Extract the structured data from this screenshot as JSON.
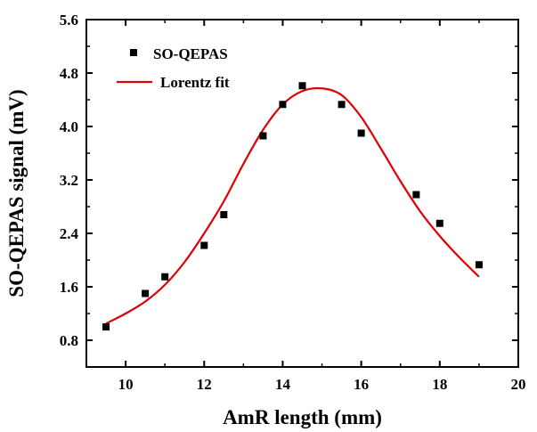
{
  "chart_data": {
    "type": "scatter",
    "xlabel": "AmR length (mm)",
    "ylabel": "SO-QEPAS signal (mV)",
    "xlim": [
      9,
      20
    ],
    "ylim": [
      0.4,
      5.6
    ],
    "xticks": [
      10,
      12,
      14,
      16,
      18,
      20
    ],
    "yticks": [
      0.8,
      1.6,
      2.4,
      3.2,
      4.0,
      4.8,
      5.6
    ],
    "x_tick_labels": [
      "10",
      "12",
      "14",
      "16",
      "18",
      "20"
    ],
    "y_tick_labels": [
      "0.8",
      "1.6",
      "2.4",
      "3.2",
      "4.0",
      "4.8",
      "5.6"
    ],
    "grid": false,
    "legend_position": "top-left",
    "series": [
      {
        "name": "SO-QEPAS",
        "kind": "scatter",
        "marker": "square",
        "color": "#000000",
        "x": [
          9.5,
          10.5,
          11.0,
          12.0,
          12.5,
          13.5,
          14.0,
          14.5,
          15.5,
          16.0,
          17.4,
          18.0,
          19.0
        ],
        "y": [
          1.0,
          1.5,
          1.75,
          2.22,
          2.68,
          3.86,
          4.33,
          4.61,
          4.33,
          3.9,
          2.98,
          2.55,
          1.93
        ]
      },
      {
        "name": "Lorentz  fit",
        "kind": "line",
        "color": "#e00000",
        "x": [
          9.5,
          10.0,
          10.5,
          11.0,
          11.5,
          12.0,
          12.5,
          13.0,
          13.5,
          14.0,
          14.5,
          15.0,
          15.5,
          16.0,
          16.5,
          17.0,
          17.5,
          18.0,
          18.5,
          19.0
        ],
        "y": [
          1.05,
          1.2,
          1.38,
          1.63,
          1.97,
          2.4,
          2.88,
          3.44,
          3.95,
          4.33,
          4.53,
          4.57,
          4.47,
          4.14,
          3.67,
          3.18,
          2.73,
          2.36,
          2.04,
          1.75
        ]
      }
    ]
  }
}
